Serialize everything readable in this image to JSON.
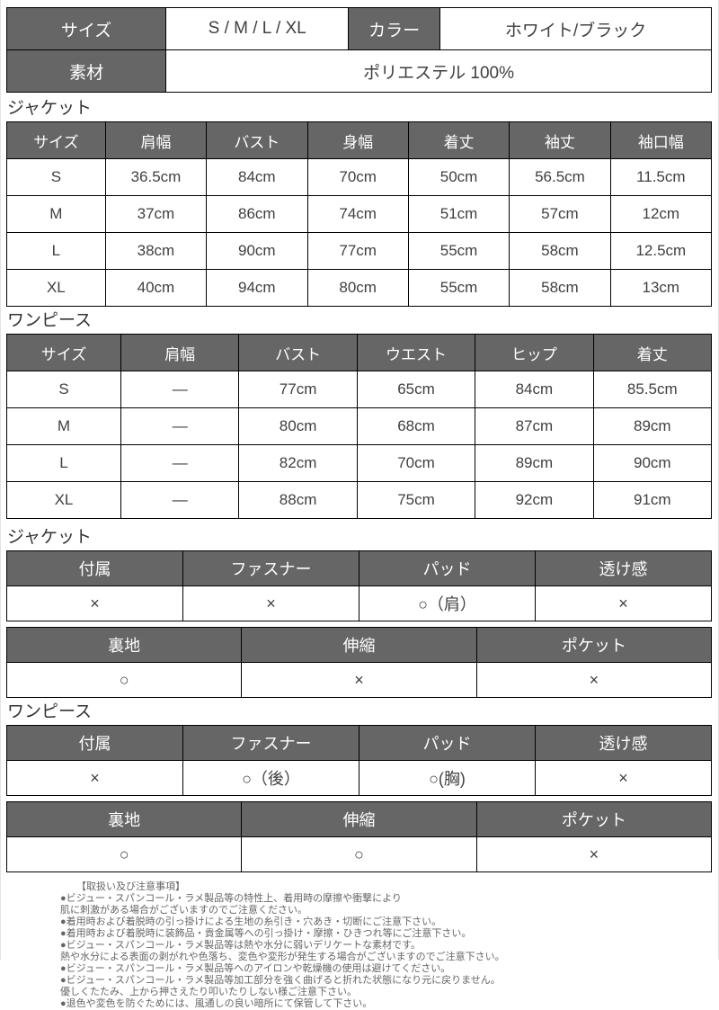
{
  "meta": {
    "colors": {
      "page_bg": "#ffffff",
      "table_header_bg": "#666666",
      "table_header_text": "#ffffff",
      "cell_text": "#404040",
      "table_border": "#000000",
      "notes_text": "#666666"
    }
  },
  "sections": {
    "jacket_size_label": "ジャケット",
    "onepiece_size_label": "ワンピース",
    "jacket_attr_label": "ジャケット",
    "onepiece_attr_label": "ワンピース"
  },
  "tables": {
    "info": {
      "rows": [
        [
          {
            "h": true,
            "v": "サイズ"
          },
          {
            "v": "S / M / L / XL"
          },
          {
            "h": true,
            "v": "カラー"
          },
          {
            "v": "ホワイト/ブラック"
          }
        ],
        [
          {
            "h": true,
            "v": "素材"
          },
          {
            "v": "ポリエステル 100%",
            "span": 3
          }
        ]
      ]
    },
    "jacket_size": {
      "rows": [
        [
          {
            "h": true,
            "v": "サイズ"
          },
          {
            "h": true,
            "v": "肩幅"
          },
          {
            "h": true,
            "v": "バスト"
          },
          {
            "h": true,
            "v": "身幅"
          },
          {
            "h": true,
            "v": "着丈"
          },
          {
            "h": true,
            "v": "袖丈"
          },
          {
            "h": true,
            "v": "袖口幅"
          }
        ],
        [
          "S",
          "36.5cm",
          "84cm",
          "70cm",
          "50cm",
          "56.5cm",
          "11.5cm"
        ],
        [
          "M",
          "37cm",
          "86cm",
          "74cm",
          "51cm",
          "57cm",
          "12cm"
        ],
        [
          "L",
          "38cm",
          "90cm",
          "77cm",
          "55cm",
          "58cm",
          "12.5cm"
        ],
        [
          "XL",
          "40cm",
          "94cm",
          "80cm",
          "55cm",
          "58cm",
          "13cm"
        ]
      ]
    },
    "onepiece_size": {
      "rows": [
        [
          {
            "h": true,
            "v": "サイズ"
          },
          {
            "h": true,
            "v": "肩幅"
          },
          {
            "h": true,
            "v": "バスト"
          },
          {
            "h": true,
            "v": "ウエスト"
          },
          {
            "h": true,
            "v": "ヒップ"
          },
          {
            "h": true,
            "v": "着丈"
          }
        ],
        [
          "S",
          "—",
          "77cm",
          "65cm",
          "84cm",
          "85.5cm"
        ],
        [
          "M",
          "—",
          "80cm",
          "68cm",
          "87cm",
          "89cm"
        ],
        [
          "L",
          "—",
          "82cm",
          "70cm",
          "89cm",
          "90cm"
        ],
        [
          "XL",
          "—",
          "88cm",
          "75cm",
          "92cm",
          "91cm"
        ]
      ]
    },
    "jacket_attr_a": {
      "rows": [
        [
          {
            "h": true,
            "v": "付属"
          },
          {
            "h": true,
            "v": "ファスナー"
          },
          {
            "h": true,
            "v": "パッド"
          },
          {
            "h": true,
            "v": "透け感"
          }
        ],
        [
          "×",
          "×",
          "○（肩）",
          "×"
        ]
      ]
    },
    "jacket_attr_b": {
      "rows": [
        [
          {
            "h": true,
            "v": "裏地"
          },
          {
            "h": true,
            "v": "伸縮"
          },
          {
            "h": true,
            "v": "ポケット"
          }
        ],
        [
          "○",
          "×",
          "×"
        ]
      ]
    },
    "onepiece_attr_a": {
      "rows": [
        [
          {
            "h": true,
            "v": "付属"
          },
          {
            "h": true,
            "v": "ファスナー"
          },
          {
            "h": true,
            "v": "パッド"
          },
          {
            "h": true,
            "v": "透け感"
          }
        ],
        [
          "×",
          "○（後）",
          {
            "v": "○(胸)",
            "cls": "tall"
          },
          "×"
        ]
      ]
    },
    "onepiece_attr_b": {
      "rows": [
        [
          {
            "h": true,
            "v": "裏地"
          },
          {
            "h": true,
            "v": "伸縮"
          },
          {
            "h": true,
            "v": "ポケット"
          }
        ],
        [
          "○",
          "○",
          "×"
        ]
      ]
    }
  },
  "notes": {
    "title": "【取扱い及び注意事項】",
    "lines": [
      "●ビジュー・スパンコール・ラメ製品等の特性上、着用時の摩擦や衝撃により",
      "肌に刺激がある場合がございますのでご注意ください。",
      "●着用時および着脱時の引っ掛けによる生地の糸引き・穴あき・切断にご注意下さい。",
      "●着用時および着脱時に装飾品・貴金属等への引っ掛け・摩擦・ひきつれ等にご注意下さい。",
      "●ビジュー・スパンコール・ラメ製品等は熱や水分に弱いデリケートな素材です。",
      "熱や水分による表面の剥がれや色落ち、変色や変形が発生する場合がございますのでご注意下さい。",
      "●ビジュー・スパンコール・ラメ製品等へのアイロンや乾燥機の使用は避けてください。",
      "●ビジュー・スパンコール・ラメ製品等加工部分を強く曲げると折れた状態になり元に戻りません。",
      "優しくたたみ、上から押さえたり叩いたりしない様ご注意下さい。",
      "●退色や変色を防ぐためには、風通しの良い暗所にて保管して下さい。"
    ]
  }
}
